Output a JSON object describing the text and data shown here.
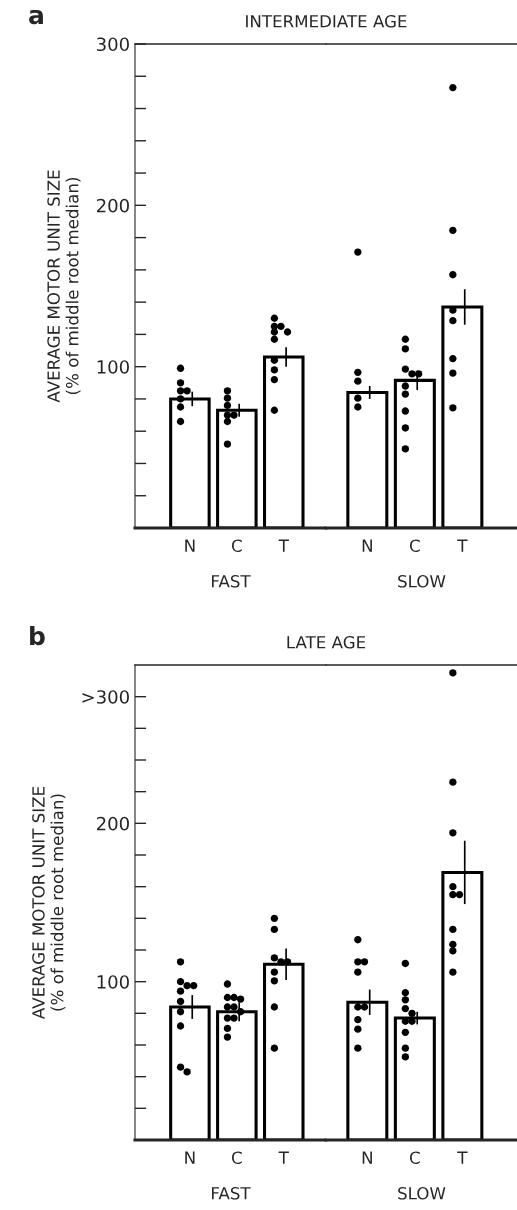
{
  "chart_data": [
    {
      "type": "bar",
      "title": "INTERMEDIATE AGE",
      "ylabel": "AVERAGE MOTOR UNIT SIZE\n(% of middle root median)",
      "xlabel": "FAST",
      "categories": [
        "N",
        "C",
        "T"
      ],
      "series": [
        {
          "color": "#ffffff",
          "values": [
            80,
            73,
            106
          ],
          "errors": [
            4.5,
            4,
            6
          ]
        },
        {
          "type": "scatter",
          "color": "#000000",
          "x": [
            "N",
            "N",
            "N",
            "N",
            "N",
            "N",
            "N",
            "C",
            "C",
            "C",
            "C",
            "C",
            "C",
            "C",
            "T",
            "T",
            "T",
            "T",
            "T",
            "T",
            "T",
            "T",
            "T",
            "T"
          ],
          "values": [
            99,
            90,
            85,
            85,
            80,
            75,
            66,
            85,
            80.5,
            76,
            70,
            70,
            66,
            52,
            130,
            125,
            125,
            121.5,
            121.5,
            117,
            104,
            98,
            92,
            73
          ]
        }
      ],
      "ylim": [
        0,
        300
      ],
      "yticks": [
        {
          "value": 20,
          "label": null
        },
        {
          "value": 40,
          "label": null
        },
        {
          "value": 60,
          "label": null
        },
        {
          "value": 80,
          "label": null
        },
        100,
        {
          "value": 120,
          "label": null
        },
        {
          "value": 140,
          "label": null
        },
        {
          "value": 160,
          "label": null
        },
        {
          "value": 180,
          "label": null
        },
        200,
        {
          "value": 220,
          "label": null
        },
        {
          "value": 240,
          "label": null
        },
        {
          "value": 260,
          "label": null
        },
        {
          "value": 280,
          "label": null
        },
        300
      ],
      "marker": "circle",
      "annotations": [
        "a"
      ]
    },
    {
      "type": "bar",
      "xlabel": "SLOW",
      "categories": [
        "N",
        "C",
        "T"
      ],
      "series": [
        {
          "color": "#ffffff",
          "values": [
            84,
            91.5,
            137
          ],
          "errors": [
            4,
            6,
            11
          ]
        },
        {
          "type": "scatter",
          "color": "#000000",
          "x": [
            "N",
            "N",
            "N",
            "N",
            "N",
            "C",
            "C",
            "C",
            "C",
            "C",
            "C",
            "C",
            "C",
            "C",
            "C",
            "T",
            "T",
            "T",
            "T",
            "T",
            "T",
            "T",
            "T"
          ],
          "values": [
            171,
            96.5,
            91,
            80.5,
            75,
            117,
            111,
            98.5,
            95.5,
            95.5,
            88,
            83,
            72.5,
            62,
            49,
            273,
            184.5,
            157,
            135,
            128.5,
            105,
            96,
            74.5
          ]
        }
      ],
      "ylim": [
        0,
        300
      ],
      "tick_labels": "x",
      "marker": "circle"
    },
    {
      "type": "bar",
      "title": "LATE AGE",
      "ylabel": "AVERAGE MOTOR UNIT SIZE\n(% of middle root median)",
      "xlabel": "FAST",
      "categories": [
        "N",
        "C",
        "T"
      ],
      "series": [
        {
          "color": "#ffffff",
          "values": [
            84,
            81,
            111
          ],
          "errors": [
            7.5,
            6,
            10
          ]
        },
        {
          "type": "scatter",
          "color": "#000000",
          "x": [
            "N",
            "N",
            "N",
            "N",
            "N",
            "N",
            "N",
            "N",
            "N",
            "N",
            "C",
            "C",
            "C",
            "C",
            "C",
            "C",
            "C",
            "C",
            "C",
            "C",
            "C",
            "T",
            "T",
            "T",
            "T",
            "T",
            "T",
            "T",
            "T",
            "T"
          ],
          "values": [
            112.5,
            100,
            97.5,
            97.5,
            94,
            87.5,
            81,
            72,
            46,
            43,
            98.5,
            90,
            90,
            89,
            84,
            84,
            81,
            77,
            77,
            70.5,
            65,
            140,
            133,
            115,
            112.5,
            112.5,
            106,
            100.5,
            84,
            58
          ]
        }
      ],
      "ylim": [
        0,
        300
      ],
      "yticks": [
        {
          "value": 20,
          "label": null
        },
        {
          "value": 40,
          "label": null
        },
        {
          "value": 60,
          "label": null
        },
        {
          "value": 80,
          "label": null
        },
        100,
        {
          "value": 120,
          "label": null
        },
        {
          "value": 140,
          "label": null
        },
        {
          "value": 160,
          "label": null
        },
        {
          "value": 180,
          "label": null
        },
        200,
        {
          "value": 220,
          "label": null
        },
        {
          "value": 240,
          "label": null
        },
        {
          "value": 260,
          "label": null
        },
        {
          "value": 280,
          "label": ">300"
        }
      ],
      "marker": "circle",
      "annotations": [
        "b"
      ]
    },
    {
      "type": "bar",
      "xlabel": "SLOW",
      "categories": [
        "N",
        "C",
        "T"
      ],
      "series": [
        {
          "color": "#ffffff",
          "values": [
            87,
            77,
            169
          ],
          "errors": [
            8,
            4,
            20
          ]
        },
        {
          "type": "scatter",
          "color": "#000000",
          "x": [
            "N",
            "N",
            "N",
            "N",
            "N",
            "N",
            "N",
            "N",
            "N",
            "C",
            "C",
            "C",
            "C",
            "C",
            "C",
            "C",
            "C",
            "C",
            "C",
            "T",
            "T",
            "T",
            "T",
            "T",
            "T",
            "T",
            "T",
            "T",
            "T"
          ],
          "values": [
            126.5,
            112.5,
            112.5,
            106,
            84,
            84,
            76,
            70,
            58,
            111.5,
            93,
            88.5,
            83,
            80,
            75,
            75,
            68,
            58,
            52.5,
            295,
            226,
            194,
            160,
            155,
            155,
            133,
            123.5,
            119.5,
            106
          ]
        }
      ],
      "ylim": [
        0,
        300
      ],
      "tick_labels": "x",
      "marker": "circle"
    }
  ]
}
